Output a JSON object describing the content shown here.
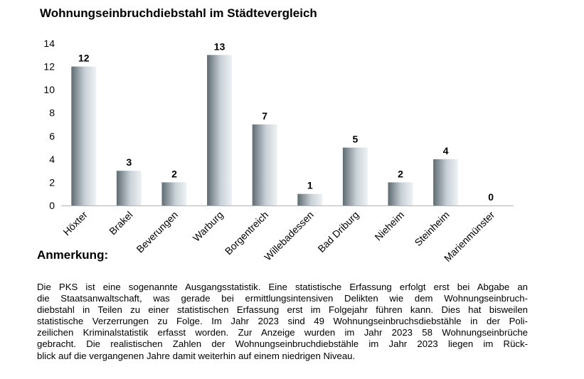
{
  "chart_data": {
    "type": "bar",
    "title": "Wohnungseinbruchdiebstahl im Städtevergleich",
    "categories": [
      "Höxter",
      "Brakel",
      "Beverungen",
      "Warburg",
      "Borgentreich",
      "Willebadessen",
      "Bad Driburg",
      "Nieheim",
      "Steinheim",
      "Marienmünster"
    ],
    "values": [
      12,
      3,
      2,
      13,
      7,
      1,
      5,
      2,
      4,
      0
    ],
    "data_labels": [
      "12",
      "3",
      "2",
      "13",
      "7",
      "1",
      "5",
      "2",
      "4",
      "0"
    ],
    "ylim": [
      0,
      14
    ],
    "yticks": [
      "0",
      "2",
      "4",
      "6",
      "8",
      "10",
      "12",
      "14"
    ],
    "xlabel": "",
    "ylabel": "",
    "grid": false,
    "legend": "none",
    "bar_colors": [
      "#5f6b72",
      "#c9d2d8",
      "#eef2f4"
    ]
  },
  "note": {
    "heading": "Anmerkung:",
    "lines": [
      "Die PKS ist eine sogenannte Ausgangsstatistik. Eine statistische Erfassung erfolgt erst bei Abgabe an",
      "die Staatsanwaltschaft, was gerade bei ermittlungsintensiven Delikten wie dem Wohnungseinbruch-",
      "diebstahl in Teilen zu einer statistischen Erfassung erst im Folgejahr führen kann. Dies hat bisweilen",
      "statistische Verzerrungen zu Folge. Im Jahr 2023 sind 49 Wohnungseinbruchsdiebstähle in der Poli-",
      "zeilichen Kriminalstatistik erfasst worden. Zur Anzeige wurden im Jahr 2023 58 Wohnungseinbrüche",
      "gebracht. Die realistischen Zahlen der Wohnungseinbruchdiebstähle im Jahr 2023 liegen im Rück-",
      "blick auf die vergangenen Jahre damit weiterhin auf einem niedrigen Niveau."
    ]
  }
}
